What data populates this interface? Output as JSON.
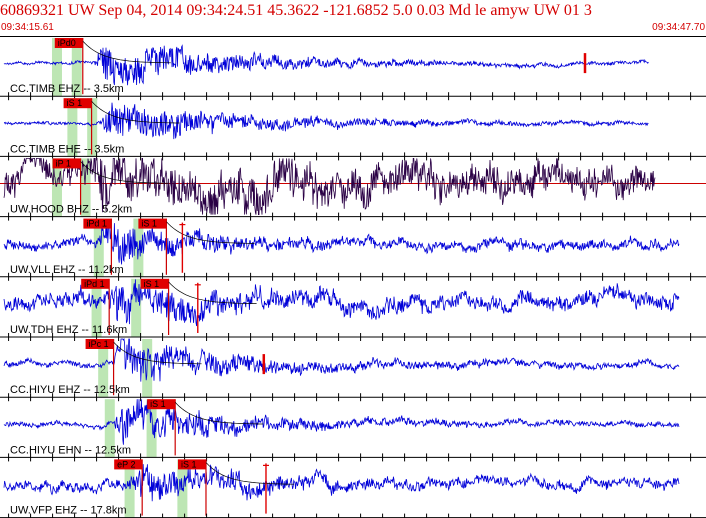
{
  "header": {
    "title": "60869321 UW Sep 04, 2014 09:34:24.51   45.3622 -121.6852  5.0 0.03 Md le amyw UW 01   3",
    "time_start": "09:34:15.61",
    "time_end": "09:34:47.70"
  },
  "colors": {
    "header_text": "#d40000",
    "trace_blue": "#0000d8",
    "trace_dark": "#2a0045",
    "pick_box": "#e00000",
    "pick_line": "#cc0000",
    "phase_band": "#bde6b4",
    "axis_line": "#000000",
    "tick_line": "#000000"
  },
  "time_window": {
    "start_s": 15.61,
    "end_s": 47.7
  },
  "traces": [
    {
      "label": "CC.TIMB EHZ -- 3.5km",
      "color_key": "trace_blue",
      "quiet_amp": 1.5,
      "peak_amp": 26,
      "onset_s": 19.9,
      "decay_s": 5.5,
      "envelope_ripple": 0,
      "end_s": 45.1,
      "has_centerline": false,
      "picks": [
        {
          "label": "iPd0",
          "t_s": 18.1
        }
      ],
      "bands_s": [
        18.2,
        19.1
      ],
      "extra_marks": [
        {
          "t_s": 42.2,
          "kind": "blip"
        }
      ]
    },
    {
      "label": "CC.TIMB EHE -- 3.5km",
      "color_key": "trace_blue",
      "quiet_amp": 1.5,
      "peak_amp": 22,
      "onset_s": 20.2,
      "decay_s": 6.0,
      "envelope_ripple": 0,
      "end_s": 45.1,
      "has_centerline": false,
      "picks": [
        {
          "label": "iS 1",
          "t_s": 18.5
        }
      ],
      "bands_s": [
        18.9,
        19.8
      ],
      "extra_marks": []
    },
    {
      "label": "UW.HOOD BHZ -- 5.2km",
      "color_key": "trace_dark",
      "quiet_amp": 14,
      "peak_amp": 19,
      "onset_s": 19.6,
      "decay_s": 10,
      "envelope_ripple": 0,
      "end_s": 45.4,
      "has_centerline": true,
      "picks": [
        {
          "label": "iP 1",
          "t_s": 18.0
        }
      ],
      "bands_s": [
        18.2,
        19.5
      ],
      "extra_marks": []
    },
    {
      "label": "UW.VLL EHZ -- 11.2km",
      "color_key": "trace_blue",
      "quiet_amp": 5,
      "peak_amp": 22,
      "onset_s": 20.1,
      "decay_s": 3.5,
      "envelope_ripple": 0,
      "end_s": 46.5,
      "has_centerline": false,
      "picks": [
        {
          "label": "iPd 1",
          "t_s": 19.4
        },
        {
          "label": "iS 1",
          "t_s": 21.9
        }
      ],
      "bands_s": [
        20.1,
        21.9
      ],
      "extra_marks": [
        {
          "t_s": 23.9,
          "kind": "cross"
        }
      ]
    },
    {
      "label": "UW.TDH EHZ -- 11.6km",
      "color_key": "trace_blue",
      "quiet_amp": 8,
      "peak_amp": 17,
      "onset_s": 20.4,
      "decay_s": 4.5,
      "envelope_ripple": 0,
      "end_s": 46.5,
      "has_centerline": false,
      "picks": [
        {
          "label": "iPd 1",
          "t_s": 19.3
        },
        {
          "label": "iS 1",
          "t_s": 22.0
        }
      ],
      "bands_s": [
        20.0,
        21.8
      ],
      "extra_marks": [
        {
          "t_s": 24.6,
          "kind": "cross"
        }
      ]
    },
    {
      "label": "CC.HIYU EHZ -- 12.5km",
      "color_key": "trace_blue",
      "quiet_amp": 3,
      "peak_amp": 24,
      "onset_s": 20.8,
      "decay_s": 5.0,
      "envelope_ripple": 0,
      "end_s": 46.5,
      "has_centerline": false,
      "picks": [
        {
          "label": "iPc 1",
          "t_s": 19.5
        }
      ],
      "bands_s": [
        20.3,
        22.3
      ],
      "extra_marks": [
        {
          "t_s": 27.6,
          "kind": "blip"
        }
      ]
    },
    {
      "label": "CC.HIYU EHN -- 12.5km",
      "color_key": "trace_blue",
      "quiet_amp": 2.5,
      "peak_amp": 24,
      "onset_s": 20.8,
      "decay_s": 5.0,
      "envelope_ripple": 0,
      "end_s": 46.5,
      "has_centerline": false,
      "picks": [
        {
          "label": "iS 1",
          "t_s": 22.3
        }
      ],
      "bands_s": [
        20.6,
        22.5
      ],
      "extra_marks": []
    },
    {
      "label": "UW.VFP EHZ -- 17.8km",
      "color_key": "trace_blue",
      "quiet_amp": 5,
      "peak_amp": 15,
      "onset_s": 21.5,
      "decay_s": 5.0,
      "envelope_ripple": 0,
      "end_s": 46.5,
      "has_centerline": false,
      "picks": [
        {
          "label": "eP 2",
          "t_s": 20.8
        },
        {
          "label": "iS 1",
          "t_s": 23.7
        }
      ],
      "bands_s": [
        21.5,
        23.9
      ],
      "extra_marks": [
        {
          "t_s": 27.7,
          "kind": "cross"
        }
      ]
    }
  ]
}
